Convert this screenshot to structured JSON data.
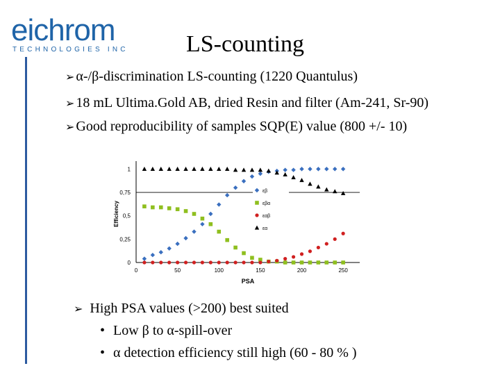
{
  "logo": {
    "word": "eichrom",
    "sub": "TECHNOLOGIES INC"
  },
  "title": "LS-counting",
  "bullets": [
    {
      "text": "α-/β-discrimination LS-counting (1220 Quantulus)"
    },
    {
      "text": "18 mL Ultima.Gold AB, dried Resin and filter (Am-241, Sr-90)"
    },
    {
      "text": "Good reproducibility of samples SQP(E) value (800 +/- 10)"
    }
  ],
  "bottom_bullet": "High PSA values (>200) best suited",
  "sub_bullets": [
    "Low β to α-spill-over",
    "α detection efficiency still high (60 - 80 % )"
  ],
  "chart_data": {
    "type": "scatter",
    "xlabel": "PSA",
    "ylabel": "Efficiency",
    "xlim": [
      0,
      270
    ],
    "ylim": [
      0,
      1.04
    ],
    "x_ticks": [
      "0",
      "50",
      "100",
      "150",
      "200",
      "250"
    ],
    "y_ticks": [
      "0",
      "0,25",
      "0,5",
      "0,75",
      "1"
    ],
    "legend_position": "right, inside plot",
    "series": [
      {
        "name": "εβ",
        "color": "#3a6fbf",
        "marker": "diamond",
        "x": [
          10,
          20,
          30,
          40,
          50,
          60,
          70,
          80,
          90,
          100,
          110,
          120,
          130,
          140,
          150,
          160,
          170,
          180,
          190,
          200,
          210,
          220,
          230,
          240,
          250
        ],
        "y": [
          0.04,
          0.08,
          0.11,
          0.15,
          0.2,
          0.26,
          0.33,
          0.41,
          0.52,
          0.62,
          0.72,
          0.8,
          0.87,
          0.92,
          0.95,
          0.97,
          0.98,
          0.99,
          0.99,
          1.0,
          1.0,
          1.0,
          1.0,
          1.0,
          1.0
        ]
      },
      {
        "name": "εβα",
        "color": "#8fbf1f",
        "marker": "square",
        "x": [
          10,
          20,
          30,
          40,
          50,
          60,
          70,
          80,
          90,
          100,
          110,
          120,
          130,
          140,
          150,
          160,
          170,
          180,
          190,
          200,
          210,
          220,
          230,
          240,
          250
        ],
        "y": [
          0.6,
          0.59,
          0.59,
          0.58,
          0.57,
          0.55,
          0.52,
          0.47,
          0.41,
          0.33,
          0.24,
          0.16,
          0.1,
          0.05,
          0.03,
          0.01,
          0.01,
          0.0,
          0.0,
          0.0,
          0.0,
          0.0,
          0.0,
          0.0,
          0.0
        ]
      },
      {
        "name": "εαβ",
        "color": "#d02020",
        "marker": "circle",
        "x": [
          10,
          20,
          30,
          40,
          50,
          60,
          70,
          80,
          90,
          100,
          110,
          120,
          130,
          140,
          150,
          160,
          170,
          180,
          190,
          200,
          210,
          220,
          230,
          240,
          250
        ],
        "y": [
          0.0,
          0.0,
          0.0,
          0.0,
          0.0,
          0.0,
          0.0,
          0.0,
          0.0,
          0.0,
          0.0,
          0.0,
          0.0,
          0.0,
          0.0,
          0.01,
          0.02,
          0.04,
          0.06,
          0.09,
          0.12,
          0.16,
          0.2,
          0.25,
          0.31
        ]
      },
      {
        "name": "εα",
        "color": "#000000",
        "marker": "triangle",
        "x": [
          10,
          20,
          30,
          40,
          50,
          60,
          70,
          80,
          90,
          100,
          110,
          120,
          130,
          140,
          150,
          160,
          170,
          180,
          190,
          200,
          210,
          220,
          230,
          240,
          250
        ],
        "y": [
          1.0,
          1.0,
          1.0,
          1.0,
          1.0,
          1.0,
          1.0,
          1.0,
          1.0,
          1.0,
          1.0,
          0.99,
          0.99,
          0.99,
          0.99,
          0.98,
          0.96,
          0.94,
          0.91,
          0.88,
          0.84,
          0.81,
          0.78,
          0.76,
          0.74
        ]
      }
    ]
  }
}
